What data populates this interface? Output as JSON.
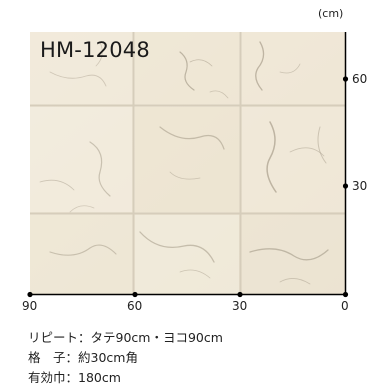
{
  "unit": "(cm)",
  "product_code": "HM-12048",
  "axes": {
    "right_ticks": [
      "60",
      "30"
    ],
    "bottom_ticks": [
      "90",
      "60",
      "30",
      "0"
    ]
  },
  "specs": {
    "repeat": "リピート：タテ90cm・ヨコ90cm",
    "grid": "格　子：約30cm角",
    "width": "有効巾：180cm"
  },
  "colors": {
    "tile_base": "#efe7d6",
    "tile_light": "#f4eedf",
    "grout": "#d7cfbf",
    "veins": "#a79d8c",
    "axis": "#000000"
  }
}
